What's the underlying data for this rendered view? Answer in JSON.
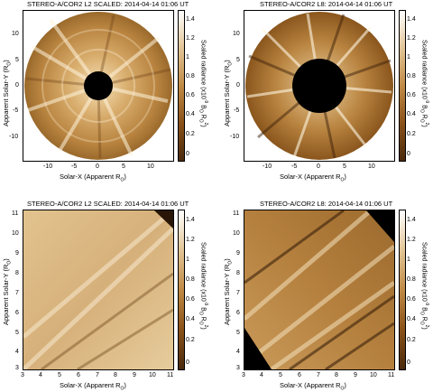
{
  "panels": [
    {
      "title": "STEREO-A/COR2 L2 SCALED: 2014-04-14 01:06 UT",
      "xlabel_main": "Solar-X (Apparent R",
      "ylabel_main": "Apparent Solar-Y (R",
      "xticks": [
        "-10",
        "-5",
        "0",
        "5",
        "10"
      ],
      "yticks": [
        "10",
        "5",
        "0",
        "-5",
        "-10"
      ],
      "cbar_label": "Scaled radiance (x10",
      "cbar_ticks": [
        "1.4",
        "1.2",
        "1",
        "0.8",
        "0.6",
        "0.4",
        "0.2",
        "0"
      ]
    },
    {
      "title": "STEREO-A/COR2 L8: 2014-04-14 01:06 UT",
      "xlabel_main": "Solar-X (Apparent R",
      "ylabel_main": "Apparent Solar-Y (R",
      "xticks": [
        "-10",
        "-5",
        "0",
        "5",
        "10"
      ],
      "yticks": [
        "10",
        "5",
        "0",
        "-5",
        "-10"
      ],
      "cbar_label": "Scaled radiance (x10",
      "cbar_ticks": [
        "1.4",
        "1.2",
        "1",
        "0.8",
        "0.6",
        "0.4",
        "0.2",
        "0"
      ]
    },
    {
      "title": "STEREO-A/COR2 L2 SCALED: 2014-04-14 01:06 UT",
      "xlabel_main": "Solar-X (Apparent R",
      "ylabel_main": "Apparent Solar-Y (R",
      "xticks": [
        "3",
        "4",
        "5",
        "6",
        "7",
        "8",
        "9",
        "10",
        "11"
      ],
      "yticks": [
        "11",
        "10",
        "9",
        "8",
        "7",
        "6",
        "5",
        "4",
        "3"
      ],
      "cbar_label": "Scaled radiance (x10",
      "cbar_ticks": [
        "1.4",
        "1.2",
        "1",
        "0.8",
        "0.6",
        "0.4",
        "0.2",
        "0"
      ]
    },
    {
      "title": "STEREO-A/COR2 L8: 2014-04-14 01:06 UT",
      "xlabel_main": "Solar-X (Apparent R",
      "ylabel_main": "Apparent Solar-Y (R",
      "xticks": [
        "3",
        "4",
        "5",
        "6",
        "7",
        "8",
        "9",
        "10",
        "11"
      ],
      "yticks": [
        "11",
        "10",
        "9",
        "8",
        "7",
        "6",
        "5",
        "4",
        "3"
      ],
      "cbar_label": "Scaled radiance (x10",
      "cbar_ticks": [
        "1.4",
        "1.2",
        "1",
        "0.8",
        "0.6",
        "0.4",
        "0.2",
        "0"
      ]
    }
  ],
  "colors": {
    "dark": "#4a2a0c",
    "mid": "#b07a38",
    "light": "#f4e6c8"
  }
}
